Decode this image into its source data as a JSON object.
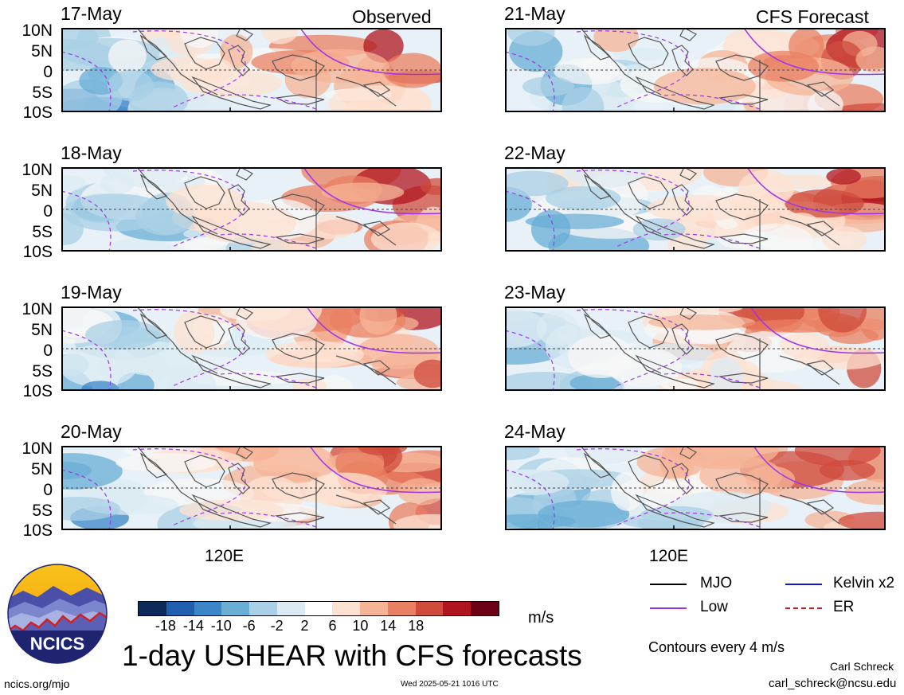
{
  "labels": {
    "observed": "Observed",
    "forecast": "CFS Forecast",
    "lon_tick": "120E",
    "lat_ticks": [
      "10N",
      "5N",
      "0",
      "5S",
      "10S"
    ],
    "units": "m/s",
    "title": "1-day USHEAR with CFS forecasts",
    "contours": "Contours every 4 m/s",
    "url": "ncics.org/mjo",
    "timestamp": "Wed 2025-05-21 1016 UTC",
    "author": "Carl Schreck",
    "email": "carl_schreck@ncsu.edu",
    "logo_text": "NCICS"
  },
  "panels_left": [
    {
      "date": "17-May"
    },
    {
      "date": "18-May"
    },
    {
      "date": "19-May"
    },
    {
      "date": "20-May"
    }
  ],
  "panels_right": [
    {
      "date": "21-May"
    },
    {
      "date": "22-May"
    },
    {
      "date": "23-May"
    },
    {
      "date": "24-May"
    }
  ],
  "colorbar": {
    "ticks": [
      "-18",
      "-14",
      "-10",
      "-6",
      "-2",
      "2",
      "6",
      "10",
      "14",
      "18"
    ],
    "colors": [
      "#0c2a5a",
      "#1f5fae",
      "#3a86c8",
      "#6aaed6",
      "#a9d0e6",
      "#dcebf3",
      "#ffffff",
      "#fde2d2",
      "#f6b497",
      "#e98062",
      "#cf4b3c",
      "#b0151f",
      "#6b0016"
    ]
  },
  "legend": [
    {
      "label": "MJO",
      "color": "#000000",
      "style": "solid"
    },
    {
      "label": "Kelvin x2",
      "color": "#1414c8",
      "style": "solid"
    },
    {
      "label": "Low",
      "color": "#a033e8",
      "style": "solid"
    },
    {
      "label": "ER",
      "color": "#d02020",
      "style": "dashed"
    }
  ]
}
